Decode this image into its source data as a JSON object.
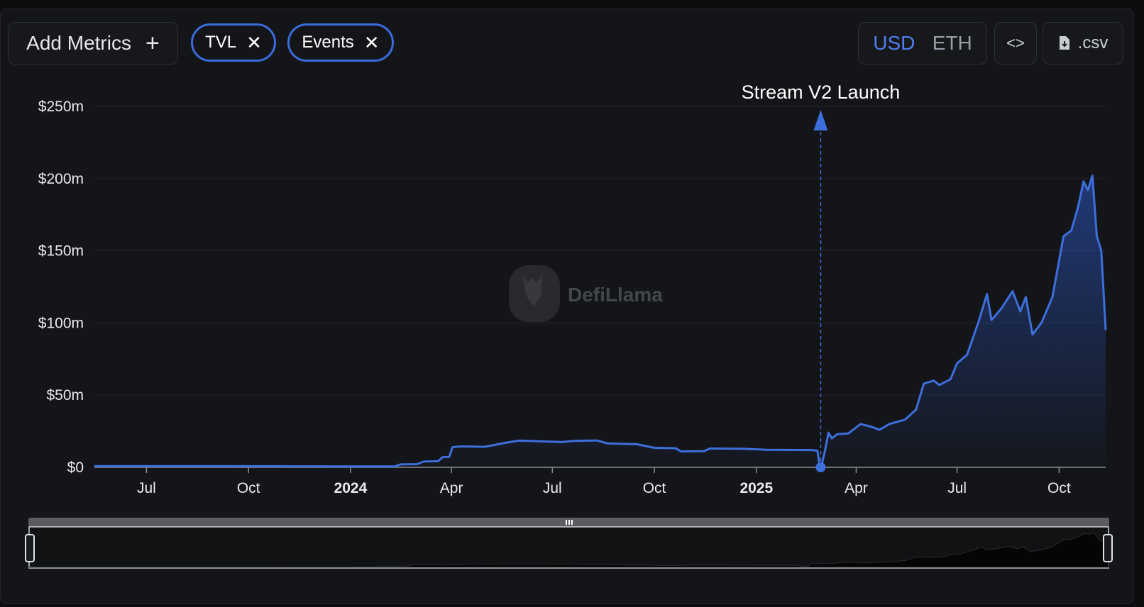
{
  "toolbar": {
    "add_metrics_label": "Add Metrics",
    "add_icon": "+",
    "chips": [
      {
        "label": "TVL",
        "close_icon": "✕"
      },
      {
        "label": "Events",
        "close_icon": "✕"
      }
    ],
    "currency_options": [
      "USD",
      "ETH"
    ],
    "currency_selected": "USD",
    "embed_icon": "<>",
    "csv_label": ".csv"
  },
  "watermark": "DefiLlama",
  "colors": {
    "accent": "#3a6bdc",
    "line": "#3d6fdc",
    "background": "#141518",
    "grid": "#22242a"
  },
  "chart_data": {
    "type": "area",
    "y_ticks": [
      "$0",
      "$50m",
      "$100m",
      "$150m",
      "$200m",
      "$250m"
    ],
    "x_ticks": [
      {
        "label": "Jul",
        "date": "2023-07-01"
      },
      {
        "label": "Oct",
        "date": "2023-10-01"
      },
      {
        "label": "2024",
        "date": "2024-01-01",
        "bold": true
      },
      {
        "label": "Apr",
        "date": "2024-04-01"
      },
      {
        "label": "Jul",
        "date": "2024-07-01"
      },
      {
        "label": "Oct",
        "date": "2024-10-01"
      },
      {
        "label": "2025",
        "date": "2025-01-01",
        "bold": true
      },
      {
        "label": "Apr",
        "date": "2025-04-01"
      },
      {
        "label": "Jul",
        "date": "2025-07-01"
      },
      {
        "label": "Oct",
        "date": "2025-10-01"
      }
    ],
    "ylim": [
      0,
      250
    ],
    "xlim": [
      "2023-05-15",
      "2025-11-12"
    ],
    "grid": true,
    "series": [
      {
        "name": "TVL",
        "unit": "$m",
        "points": [
          [
            "2023-05-15",
            0.8
          ],
          [
            "2023-09-01",
            0.8
          ],
          [
            "2023-12-01",
            0.7
          ],
          [
            "2024-01-01",
            0.6
          ],
          [
            "2024-02-10",
            0.6
          ],
          [
            "2024-02-15",
            2.0
          ],
          [
            "2024-03-01",
            2.2
          ],
          [
            "2024-03-07",
            4.0
          ],
          [
            "2024-03-20",
            4.2
          ],
          [
            "2024-03-24",
            7.0
          ],
          [
            "2024-03-30",
            7.2
          ],
          [
            "2024-04-02",
            14.0
          ],
          [
            "2024-04-10",
            14.5
          ],
          [
            "2024-05-01",
            14.2
          ],
          [
            "2024-05-20",
            17.0
          ],
          [
            "2024-06-01",
            18.5
          ],
          [
            "2024-06-20",
            18.0
          ],
          [
            "2024-07-10",
            17.5
          ],
          [
            "2024-07-20",
            18.3
          ],
          [
            "2024-08-10",
            18.6
          ],
          [
            "2024-08-20",
            16.5
          ],
          [
            "2024-09-15",
            16.0
          ],
          [
            "2024-10-01",
            13.5
          ],
          [
            "2024-10-20",
            13.2
          ],
          [
            "2024-10-25",
            11.0
          ],
          [
            "2024-11-15",
            11.2
          ],
          [
            "2024-11-20",
            13.0
          ],
          [
            "2024-12-20",
            12.8
          ],
          [
            "2025-01-10",
            12.2
          ],
          [
            "2025-02-20",
            12.0
          ],
          [
            "2025-02-25",
            11.5
          ],
          [
            "2025-02-27",
            1.0
          ],
          [
            "2025-03-01",
            2.0
          ],
          [
            "2025-03-04",
            12.0
          ],
          [
            "2025-03-07",
            24.0
          ],
          [
            "2025-03-10",
            20.0
          ],
          [
            "2025-03-15",
            23.0
          ],
          [
            "2025-03-25",
            23.5
          ],
          [
            "2025-04-05",
            30.0
          ],
          [
            "2025-04-15",
            28.0
          ],
          [
            "2025-04-22",
            26.0
          ],
          [
            "2025-05-01",
            30.0
          ],
          [
            "2025-05-15",
            33.0
          ],
          [
            "2025-05-25",
            40.0
          ],
          [
            "2025-06-01",
            58.0
          ],
          [
            "2025-06-10",
            60.0
          ],
          [
            "2025-06-15",
            57.0
          ],
          [
            "2025-06-25",
            61.0
          ],
          [
            "2025-07-01",
            72.0
          ],
          [
            "2025-07-10",
            78.0
          ],
          [
            "2025-07-20",
            100.0
          ],
          [
            "2025-07-28",
            120.0
          ],
          [
            "2025-08-01",
            102.0
          ],
          [
            "2025-08-10",
            110.0
          ],
          [
            "2025-08-20",
            122.0
          ],
          [
            "2025-08-27",
            108.0
          ],
          [
            "2025-09-01",
            118.0
          ],
          [
            "2025-09-07",
            92.0
          ],
          [
            "2025-09-15",
            100.0
          ],
          [
            "2025-09-25",
            118.0
          ],
          [
            "2025-10-05",
            160.0
          ],
          [
            "2025-10-12",
            164.0
          ],
          [
            "2025-10-18",
            180.0
          ],
          [
            "2025-10-23",
            198.0
          ],
          [
            "2025-10-27",
            192.0
          ],
          [
            "2025-10-31",
            202.0
          ],
          [
            "2025-11-04",
            160.0
          ],
          [
            "2025-11-08",
            150.0
          ],
          [
            "2025-11-12",
            95.0
          ]
        ]
      }
    ],
    "events": [
      {
        "label": "Stream V2 Launch",
        "date": "2025-02-28"
      }
    ]
  }
}
